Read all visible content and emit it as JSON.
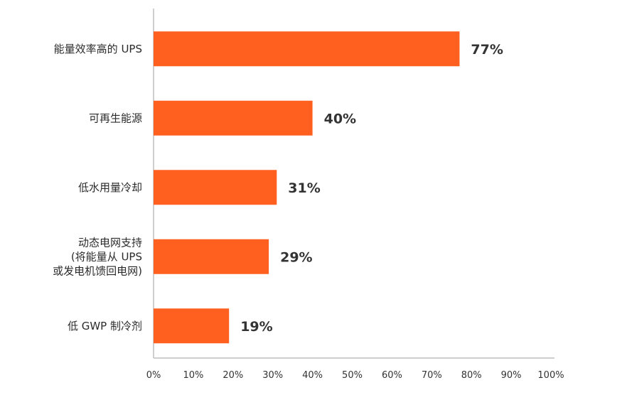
{
  "chart_data": {
    "type": "bar",
    "orientation": "horizontal",
    "categories": [
      [
        "能量效率高的 UPS"
      ],
      [
        "可再生能源"
      ],
      [
        "低水用量冷却"
      ],
      [
        "动态电网支持",
        "(将能量从 UPS",
        "或发电机馈回电网)"
      ],
      [
        "低 GWP 制冷剂"
      ]
    ],
    "values": [
      77,
      40,
      31,
      29,
      19
    ],
    "value_labels": [
      "77%",
      "40%",
      "31%",
      "29%",
      "19%"
    ],
    "xlim": [
      0,
      100
    ],
    "x_ticks": [
      0,
      10,
      20,
      30,
      40,
      50,
      60,
      70,
      80,
      90,
      100
    ],
    "x_tick_labels": [
      "0%",
      "10%",
      "20%",
      "30%",
      "40%",
      "50%",
      "60%",
      "70%",
      "80%",
      "90%",
      "100%"
    ],
    "grid": false,
    "legend": "none",
    "bar_color": "#FF5F1F"
  }
}
